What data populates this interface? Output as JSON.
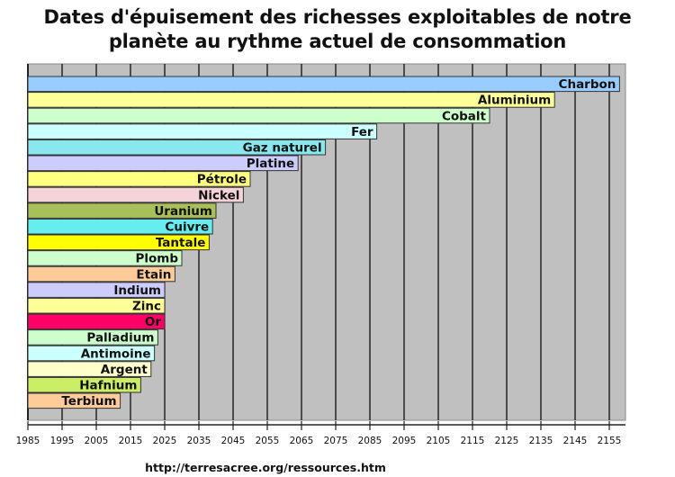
{
  "chart_data": {
    "type": "bar",
    "orientation": "horizontal",
    "title_lines": [
      "Dates d'épuisement des richesses exploitables de notre",
      "planète au rythme actuel de consommation"
    ],
    "xlabel": "",
    "ylabel": "",
    "xlim": [
      1985,
      2160
    ],
    "grid": true,
    "legend": "none",
    "x_ticks": [
      1985,
      1995,
      2005,
      2015,
      2025,
      2035,
      2045,
      2055,
      2065,
      2075,
      2085,
      2095,
      2105,
      2115,
      2125,
      2135,
      2145,
      2155
    ],
    "categories": [
      "Charbon",
      "Aluminium",
      "Cobalt",
      "Fer",
      "Gaz naturel",
      "Platine",
      "Pétrole",
      "Nickel",
      "Uranium",
      "Cuivre",
      "Tantale",
      "Plomb",
      "Etain",
      "Indium",
      "Zinc",
      "Or",
      "Palladium",
      "Antimoine",
      "Argent",
      "Hafnium",
      "Terbium"
    ],
    "values": [
      2158,
      2139,
      2120,
      2087,
      2072,
      2064,
      2050,
      2048,
      2040,
      2039,
      2038,
      2030,
      2028,
      2025,
      2025,
      2025,
      2023,
      2022,
      2021,
      2018,
      2012
    ],
    "colors": [
      "#99ccff",
      "#ffff99",
      "#ccffcc",
      "#ccffff",
      "#88e8ee",
      "#ccccff",
      "#ffff80",
      "#f4d4d8",
      "#a8bf5a",
      "#66eeee",
      "#ffff00",
      "#ccffcc",
      "#ffcc99",
      "#ccccff",
      "#ffff99",
      "#ff0066",
      "#ccffcc",
      "#ccffff",
      "#ffffcc",
      "#ccee66",
      "#ffcc99"
    ]
  },
  "footer": {
    "source_url": "http://terresacree.org/ressources.htm"
  },
  "style": {
    "plot_bg": "#c0c0c0",
    "grid_color": "#000000",
    "bar_border": "#333333"
  }
}
